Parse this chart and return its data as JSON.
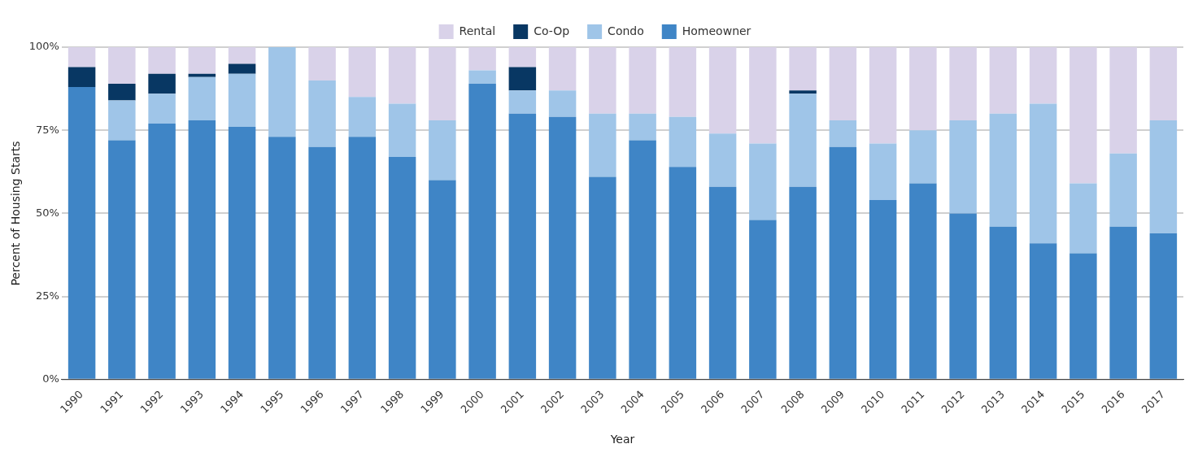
{
  "chart_data": {
    "type": "bar",
    "stacked": true,
    "xlabel": "Year",
    "ylabel": "Percent of Housing Starts",
    "categories": [
      "1990",
      "1991",
      "1992",
      "1993",
      "1994",
      "1995",
      "1996",
      "1997",
      "1998",
      "1999",
      "2000",
      "2001",
      "2002",
      "2003",
      "2004",
      "2005",
      "2006",
      "2007",
      "2008",
      "2009",
      "2010",
      "2011",
      "2012",
      "2013",
      "2014",
      "2015",
      "2016",
      "2017"
    ],
    "series": [
      {
        "name": "Homeowner",
        "color": "#3f85c6",
        "values": [
          88,
          72,
          77,
          78,
          76,
          73,
          70,
          73,
          67,
          60,
          89,
          80,
          79,
          61,
          72,
          64,
          58,
          48,
          58,
          70,
          54,
          59,
          50,
          46,
          41,
          38,
          46,
          44
        ]
      },
      {
        "name": "Condo",
        "color": "#9fc5e8",
        "values": [
          0,
          12,
          9,
          13,
          16,
          27,
          20,
          12,
          16,
          18,
          4,
          7,
          8,
          19,
          8,
          15,
          16,
          23,
          28,
          8,
          17,
          16,
          28,
          34,
          42,
          21,
          22,
          34
        ]
      },
      {
        "name": "Co-Op",
        "color": "#083763",
        "values": [
          6,
          5,
          6,
          1,
          3,
          0,
          0,
          0,
          0,
          0,
          0,
          7,
          0,
          0,
          0,
          0,
          0,
          0,
          1,
          0,
          0,
          0,
          0,
          0,
          0,
          0,
          0,
          0
        ]
      },
      {
        "name": "Rental",
        "color": "#d9d2e9",
        "values": [
          6,
          11,
          8,
          8,
          5,
          0,
          10,
          15,
          17,
          22,
          7,
          6,
          13,
          20,
          20,
          21,
          26,
          29,
          13,
          22,
          29,
          25,
          22,
          20,
          17,
          41,
          32,
          22
        ]
      }
    ],
    "ylim": [
      0,
      100
    ],
    "yticks": [
      {
        "value": 0,
        "label": "0%"
      },
      {
        "value": 25,
        "label": "25%"
      },
      {
        "value": 50,
        "label": "50%"
      },
      {
        "value": 75,
        "label": "75%"
      },
      {
        "value": 100,
        "label": "100%"
      }
    ],
    "grid": "y",
    "legend": "top"
  }
}
